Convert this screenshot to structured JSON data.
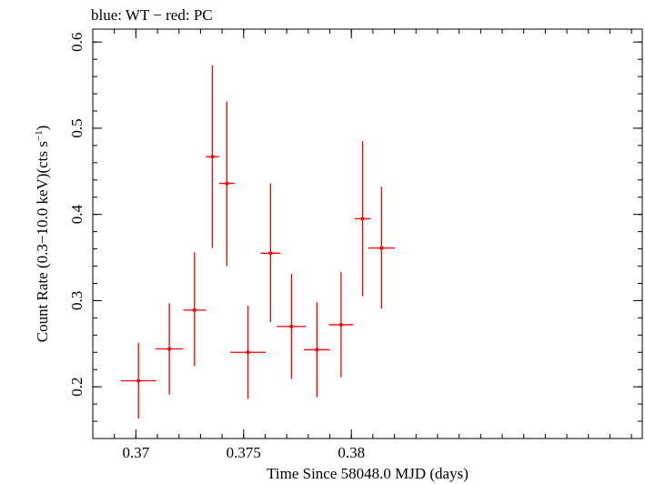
{
  "chart_data": {
    "type": "scatter",
    "title": "blue: WT − red: PC",
    "xlabel": "Time Since 58048.0 MJD (days)",
    "ylabel_parts": {
      "prefix": "Count Rate (0.3−10.0 keV)(cts s",
      "superscript": "−1",
      "suffix": ")"
    },
    "xlim": [
      0.368,
      0.3935
    ],
    "ylim": [
      0.14,
      0.615
    ],
    "x_ticks": [
      {
        "value": 0.37,
        "label": "0.37"
      },
      {
        "value": 0.375,
        "label": "0.375"
      },
      {
        "value": 0.38,
        "label": "0.38"
      }
    ],
    "y_ticks": [
      {
        "value": 0.2,
        "label": "0.2"
      },
      {
        "value": 0.3,
        "label": "0.3"
      },
      {
        "value": 0.4,
        "label": "0.4"
      },
      {
        "value": 0.5,
        "label": "0.5"
      },
      {
        "value": 0.6,
        "label": "0.6"
      }
    ],
    "x_minor_step": 0.001,
    "y_minor_step": 0.02,
    "grid": false,
    "series": [
      {
        "color": "#ff0000",
        "points": [
          {
            "x": 0.37012,
            "xerr": 0.00082,
            "y": 0.207,
            "ylo": 0.163,
            "yhi": 0.251
          },
          {
            "x": 0.37155,
            "xerr": 0.00065,
            "y": 0.244,
            "ylo": 0.191,
            "yhi": 0.297
          },
          {
            "x": 0.37272,
            "xerr": 0.00052,
            "y": 0.289,
            "ylo": 0.224,
            "yhi": 0.356
          },
          {
            "x": 0.37355,
            "xerr": 0.00031,
            "y": 0.467,
            "ylo": 0.361,
            "yhi": 0.573
          },
          {
            "x": 0.37422,
            "xerr": 0.00036,
            "y": 0.436,
            "ylo": 0.34,
            "yhi": 0.531
          },
          {
            "x": 0.3752,
            "xerr": 0.00082,
            "y": 0.24,
            "ylo": 0.186,
            "yhi": 0.294
          },
          {
            "x": 0.37625,
            "xerr": 0.00046,
            "y": 0.355,
            "ylo": 0.275,
            "yhi": 0.436
          },
          {
            "x": 0.37722,
            "xerr": 0.00068,
            "y": 0.27,
            "ylo": 0.209,
            "yhi": 0.331
          },
          {
            "x": 0.3784,
            "xerr": 0.0006,
            "y": 0.243,
            "ylo": 0.188,
            "yhi": 0.298
          },
          {
            "x": 0.37952,
            "xerr": 0.00057,
            "y": 0.272,
            "ylo": 0.211,
            "yhi": 0.333
          },
          {
            "x": 0.38052,
            "xerr": 0.00037,
            "y": 0.395,
            "ylo": 0.305,
            "yhi": 0.485
          },
          {
            "x": 0.3814,
            "xerr": 0.00062,
            "y": 0.361,
            "ylo": 0.291,
            "yhi": 0.432
          }
        ]
      }
    ]
  }
}
